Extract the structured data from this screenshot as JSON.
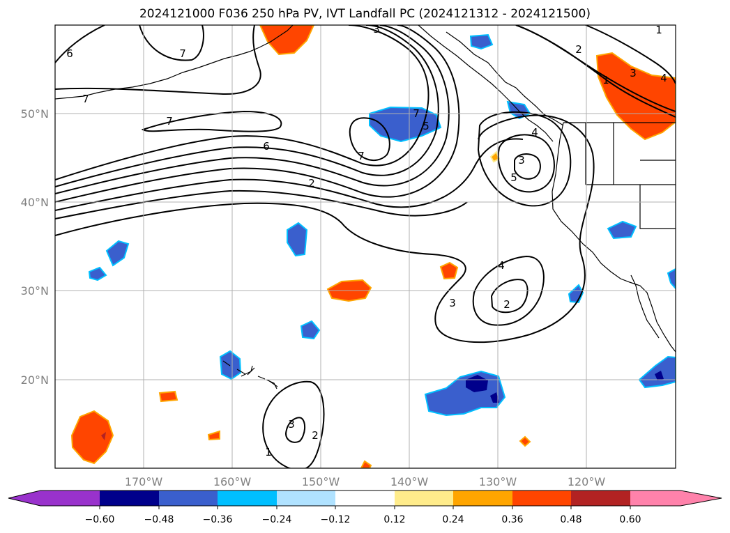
{
  "title": "2024121000 F036 250 hPa PV, IVT Landfall PC (2024121312 - 2024121500)",
  "map": {
    "lon_range": [
      -180,
      -110
    ],
    "lat_range": [
      10,
      60
    ],
    "lon_ticks": [
      "170°W",
      "160°W",
      "150°W",
      "140°W",
      "130°W",
      "120°W"
    ],
    "lat_ticks": [
      "50°N",
      "40°N",
      "30°N",
      "20°N"
    ],
    "grid": true,
    "contour_labels": [
      "6",
      "7",
      "7",
      "7",
      "3",
      "3",
      "4",
      "2",
      "1",
      "7",
      "6",
      "2",
      "7",
      "5",
      "4",
      "3",
      "5",
      "4",
      "2",
      "3",
      "1",
      "3",
      "2",
      "1"
    ]
  },
  "colorbar": {
    "ticks": [
      "−0.60",
      "−0.48",
      "−0.36",
      "−0.24",
      "−0.12",
      "0.12",
      "0.24",
      "0.36",
      "0.48",
      "0.60"
    ],
    "colors": [
      "#9932cc",
      "#00008b",
      "#3a5fcd",
      "#00bfff",
      "#b0e2ff",
      "#ffffff",
      "#ffec8b",
      "#ffa500",
      "#ff4500",
      "#b22222",
      "#ff82ab"
    ],
    "extend": "both"
  },
  "colors": {
    "pv_contour": "#000000",
    "coast": "#000000",
    "grid": "#b0b0b0"
  }
}
